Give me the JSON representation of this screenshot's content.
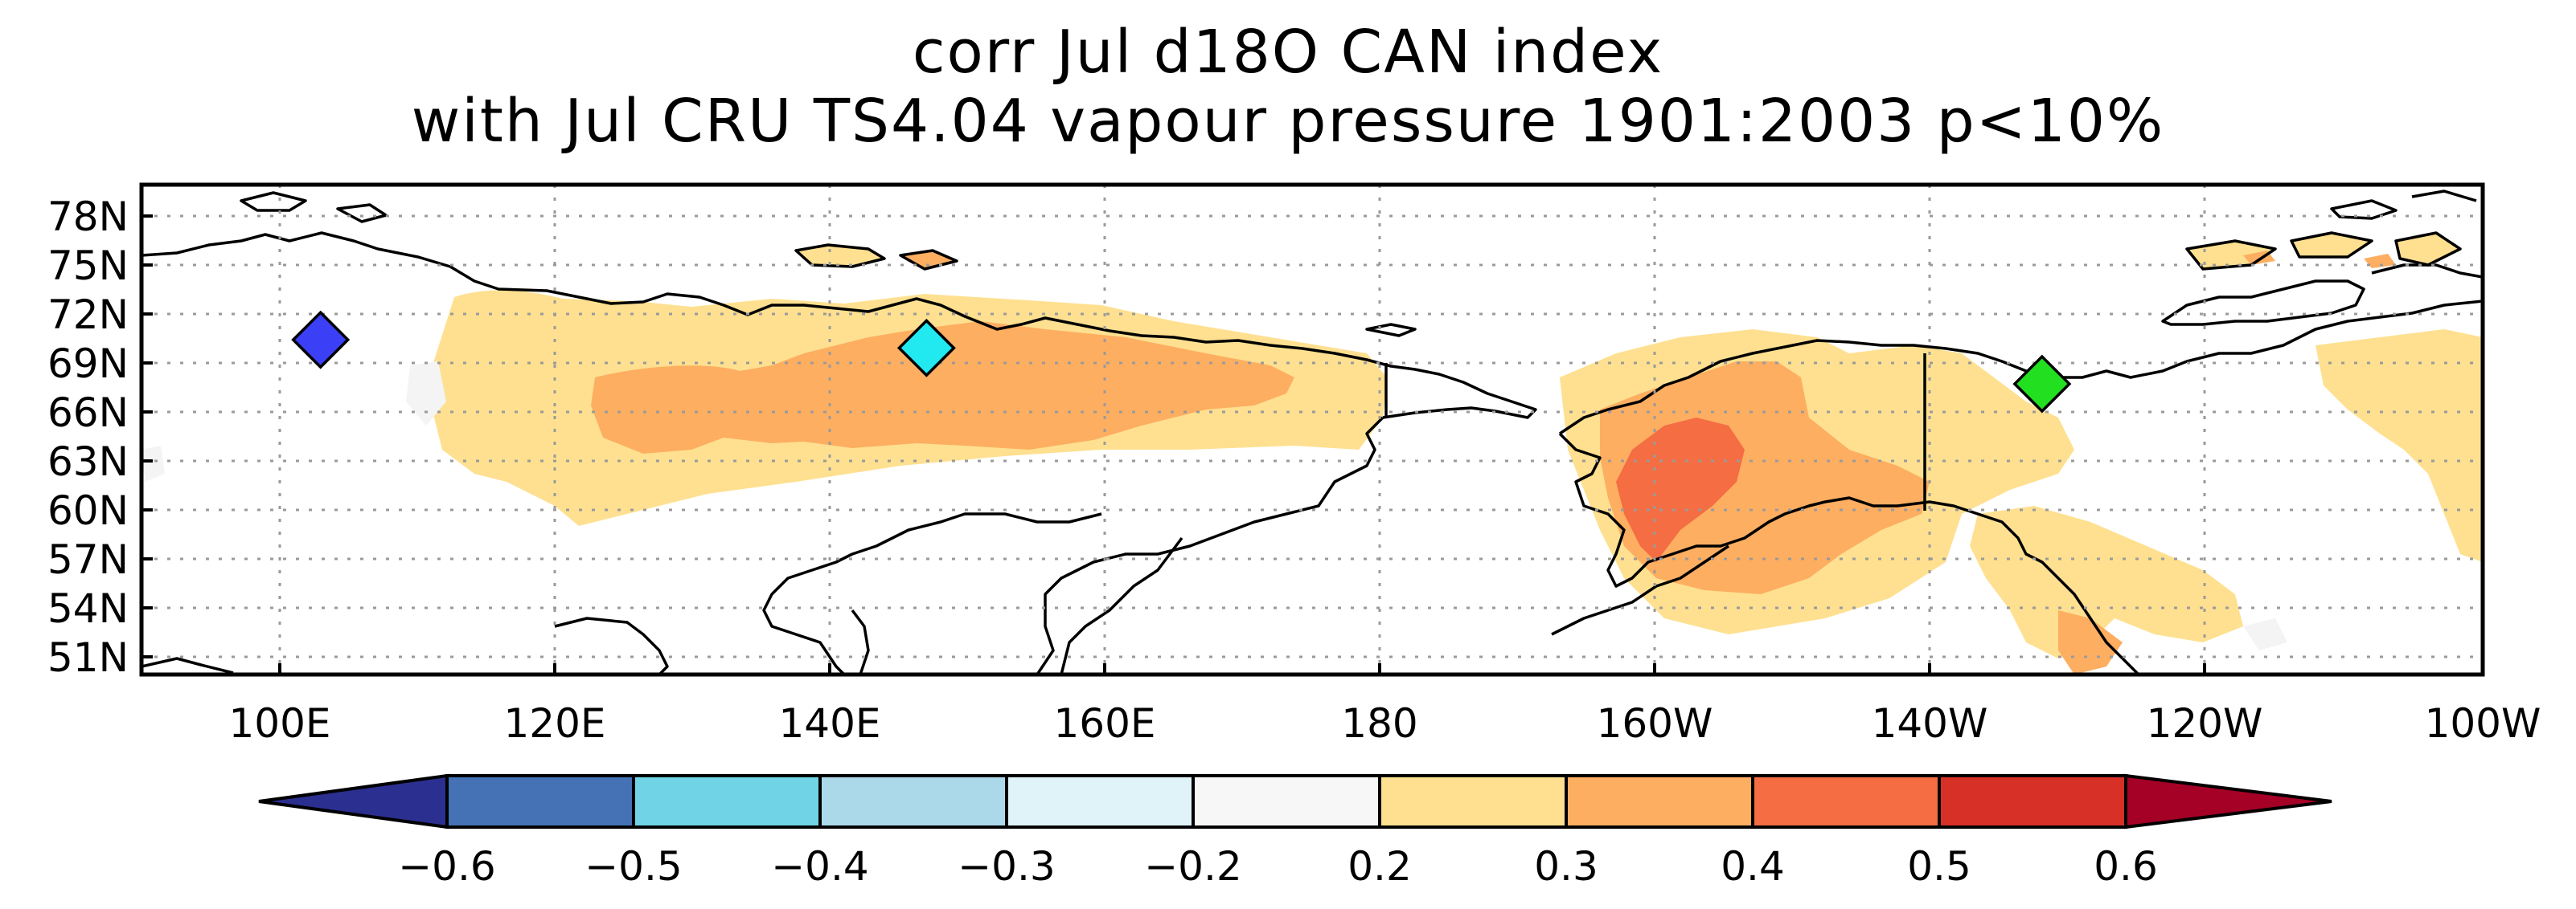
{
  "title": {
    "line1": "corr Jul d18O CAN index",
    "line2": "with Jul CRU TS4.04 vapour pressure 1901:2003 p<10%"
  },
  "map": {
    "lon_range_east": [
      90,
      260
    ],
    "lat_range": [
      50,
      80
    ],
    "lat_ticks": [
      "78N",
      "75N",
      "72N",
      "69N",
      "66N",
      "63N",
      "60N",
      "57N",
      "54N",
      "51N"
    ],
    "lon_ticks": [
      "100E",
      "120E",
      "140E",
      "160E",
      "180",
      "160W",
      "140W",
      "120W",
      "100W"
    ],
    "gridlines": "dotted",
    "markers": [
      {
        "name": "blue-diamond",
        "lon": 103,
        "lat": 70.5,
        "color": "#3b3ff5"
      },
      {
        "name": "cyan-diamond",
        "lon": 147,
        "lat": 70,
        "color": "#22e8f0"
      },
      {
        "name": "green-diamond",
        "lon": 228,
        "lat": 67.8,
        "color": "#22e01f"
      }
    ]
  },
  "colorbar": {
    "labels": [
      "−0.6",
      "−0.5",
      "−0.4",
      "−0.3",
      "−0.2",
      "0.2",
      "0.3",
      "0.4",
      "0.5",
      "0.6"
    ],
    "colors": [
      "#2b2f8f",
      "#4472b4",
      "#70d4e6",
      "#abd9ea",
      "#e0f3f8",
      "#f7f7f7",
      "#fee090",
      "#fdae61",
      "#f46d43",
      "#d73027",
      "#a50026"
    ]
  },
  "colors": {
    "land_outline": "#000000",
    "positive_weak": "#fee090",
    "positive_mid": "#fdae61",
    "positive_strong": "#f46d43"
  }
}
